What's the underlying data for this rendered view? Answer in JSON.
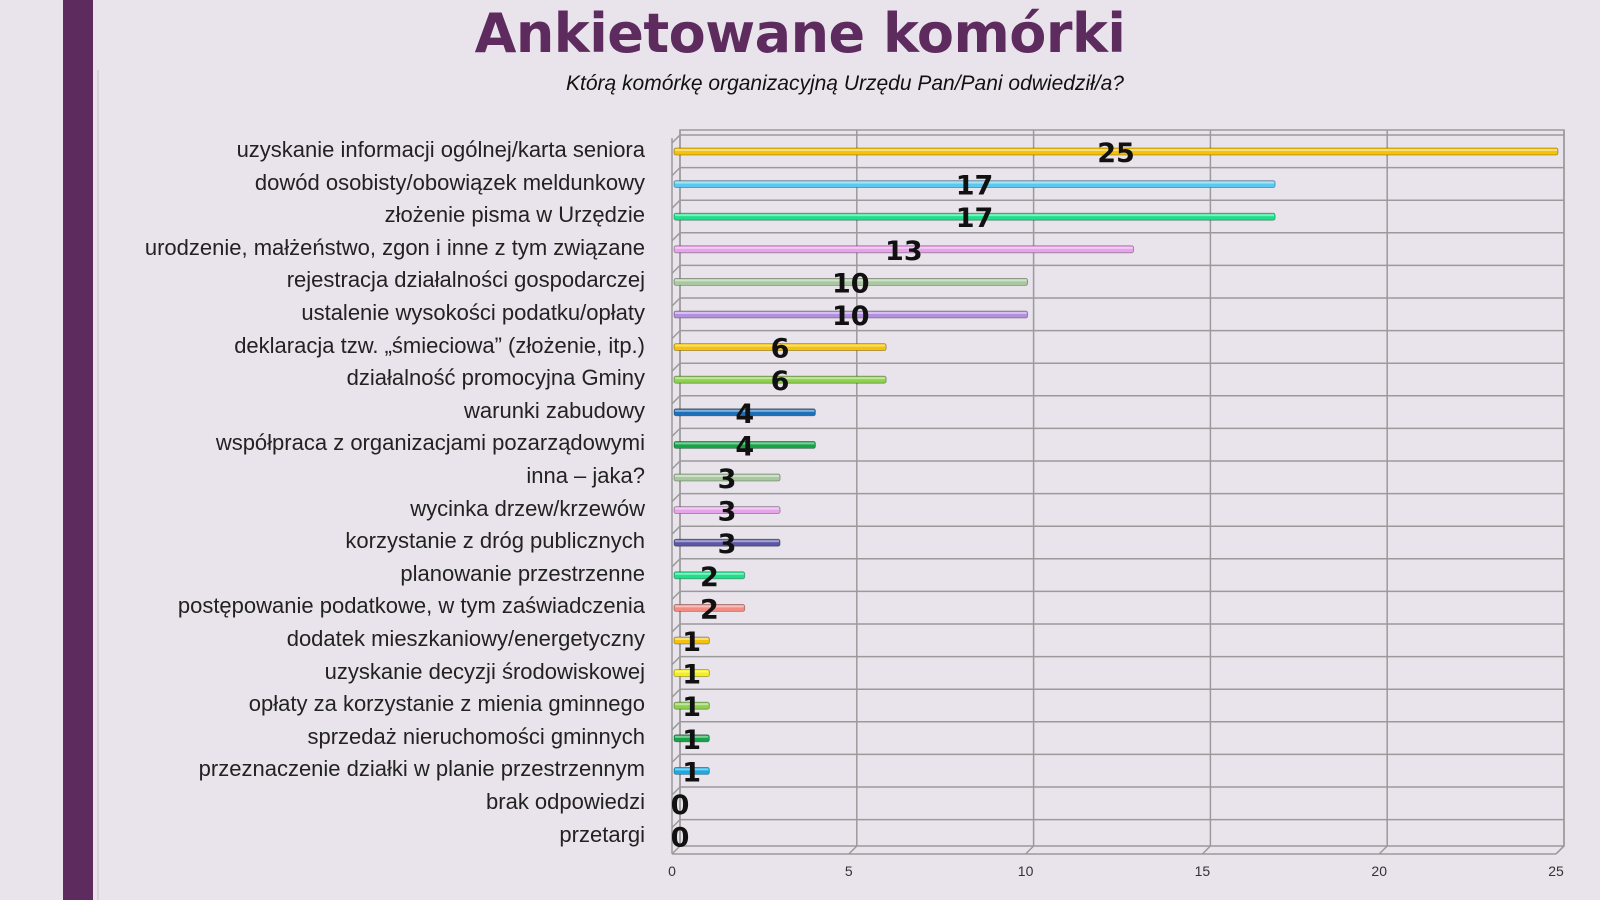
{
  "chart_data": {
    "type": "bar",
    "orientation": "horizontal",
    "title": "Ankietowane komórki",
    "subtitle": "Którą komórkę organizacyjną Urzędu Pan/Pani odwiedził/a?",
    "categories": [
      "uzyskanie informacji ogólnej/karta seniora",
      "dowód osobisty/obowiązek meldunkowy",
      "złożenie pisma w Urzędzie",
      "urodzenie, małżeństwo, zgon i inne z tym związane",
      "rejestracja działalności gospodarczej",
      "ustalenie wysokości podatku/opłaty",
      "deklaracja tzw. „śmieciowa” (złożenie, itp.)",
      "działalność promocyjna Gminy",
      "warunki zabudowy",
      "współpraca z organizacjami pozarządowymi",
      "inna – jaka?",
      "wycinka drzew/krzewów",
      "korzystanie z dróg publicznych",
      "planowanie przestrzenne",
      "postępowanie podatkowe, w tym zaświadczenia",
      "dodatek mieszkaniowy/energetyczny",
      "uzyskanie decyzji środowiskowej",
      "opłaty za korzystanie z mienia gminnego",
      "sprzedaż nieruchomości gminnych",
      "przeznaczenie działki w planie przestrzennym",
      "brak odpowiedzi",
      "przetargi"
    ],
    "values": [
      25,
      17,
      17,
      13,
      10,
      10,
      6,
      6,
      4,
      4,
      3,
      3,
      3,
      2,
      2,
      1,
      1,
      1,
      1,
      1,
      0,
      0
    ],
    "colors": [
      "#f4c20d",
      "#5bc8f0",
      "#1ee08a",
      "#e6a3ea",
      "#a9c8a0",
      "#b48ee0",
      "#f4c20d",
      "#8fd14f",
      "#1e6fb8",
      "#16a34a",
      "#a9c8a0",
      "#e6a3ea",
      "#5b57a6",
      "#1ee08a",
      "#f28b82",
      "#f4c20d",
      "#f5ee1a",
      "#8fd14f",
      "#16a34a",
      "#1aa9e0",
      "#999999",
      "#999999"
    ],
    "xlim": [
      0,
      25
    ],
    "xticks": [
      0,
      5,
      10,
      15,
      20,
      25
    ],
    "grid": true,
    "data_labels": true
  }
}
